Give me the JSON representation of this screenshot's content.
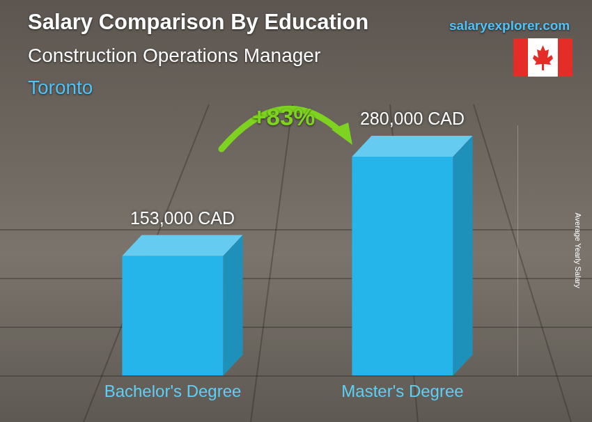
{
  "chart_data": {
    "type": "bar",
    "title": "Salary Comparison By Education",
    "subtitle": "Construction Operations Manager",
    "location": "Toronto",
    "source": "salaryexplorer.com",
    "ylabel": "Average Yearly Salary",
    "categories": [
      "Bachelor's Degree",
      "Master's Degree"
    ],
    "values": [
      153000,
      280000
    ],
    "value_labels": [
      "153,000 CAD",
      "280,000 CAD"
    ],
    "data_labels": true,
    "color": "#25b5ea",
    "ylim": [
      0,
      320000
    ],
    "grid": false,
    "tick_labels": "x",
    "annotations": [
      "+83%"
    ]
  }
}
